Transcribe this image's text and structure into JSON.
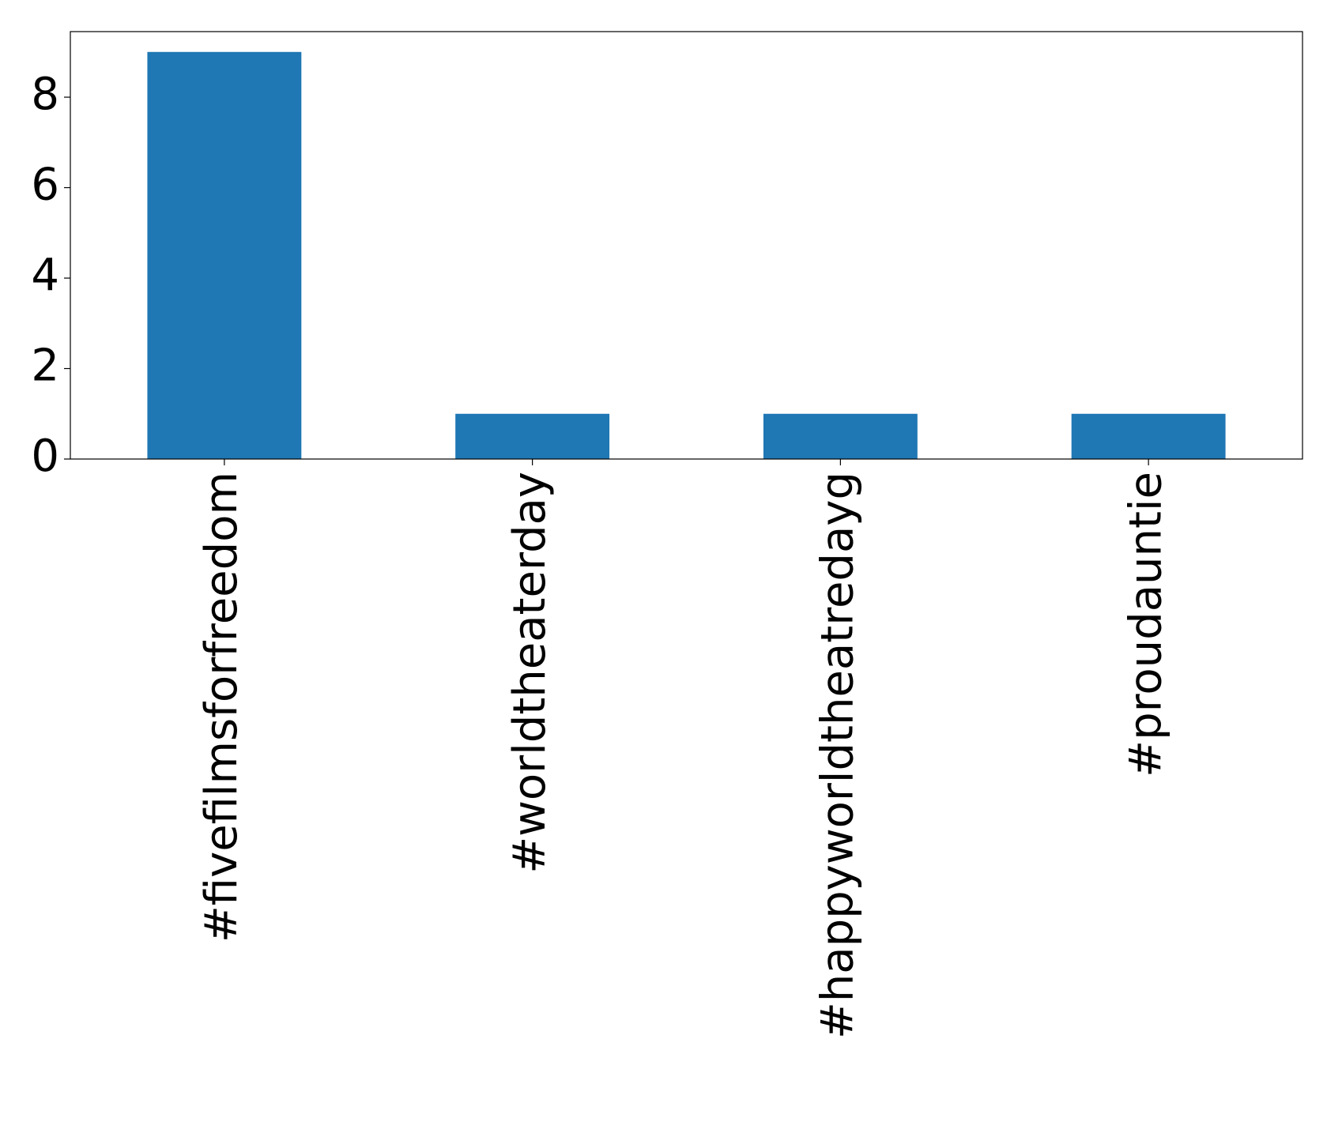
{
  "chart_data": {
    "type": "bar",
    "categories": [
      "#fivefilmsforfreedom",
      "#worldtheaterday",
      "#happyworldtheatredayg",
      "#proudauntie"
    ],
    "values": [
      9,
      1,
      1,
      1
    ],
    "color": "#1f77b4",
    "ylim": [
      0,
      9.45
    ],
    "yticks": [
      0,
      2,
      4,
      6,
      8
    ],
    "grid": false
  }
}
